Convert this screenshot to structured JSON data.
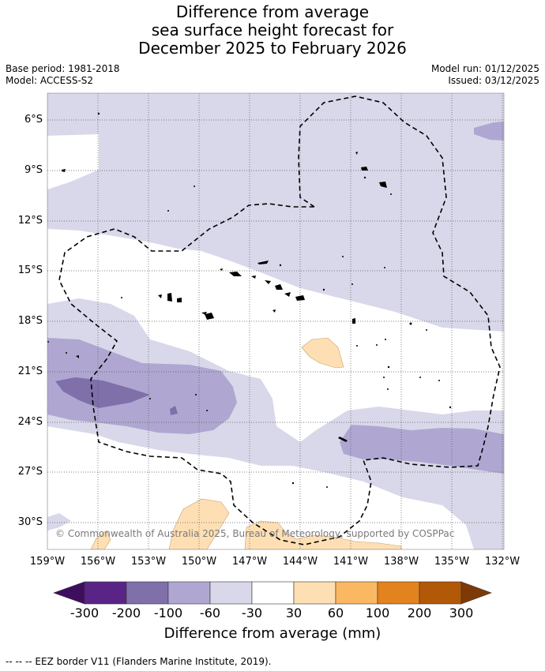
{
  "title": {
    "line1": "Difference from average",
    "line2": "sea surface height forecast for",
    "line3": "December 2025 to February 2026"
  },
  "meta": {
    "base_period": "Base period: 1981-2018",
    "model": "Model: ACCESS-S2",
    "model_run": "Model run: 01/12/2025",
    "issued": "Issued: 03/12/2025"
  },
  "map": {
    "lat_ticks": [
      "6°S",
      "9°S",
      "12°S",
      "15°S",
      "18°S",
      "21°S",
      "24°S",
      "27°S",
      "30°S"
    ],
    "lon_ticks": [
      "159°W",
      "156°W",
      "153°W",
      "150°W",
      "147°W",
      "144°W",
      "141°W",
      "138°W",
      "135°W",
      "132°W"
    ],
    "copyright": "© Commonwealth of Australia 2025, Bureau of Meteorology, supported by COSPPac"
  },
  "colorbar": {
    "labels": [
      "-300",
      "-200",
      "-100",
      "-60",
      "-30",
      "30",
      "60",
      "100",
      "200",
      "300"
    ],
    "colors": [
      "#3f0d5e",
      "#5a2486",
      "#7f70aa",
      "#afa7d1",
      "#d8d8ea",
      "#ffffff",
      "#fedfb4",
      "#fab862",
      "#e2831e",
      "#b25908",
      "#7d3a07"
    ],
    "title": "Difference from average (mm)"
  },
  "legend": {
    "eez": "--  --  -- EEZ border V11 (Flanders Marine Institute, 2019)."
  }
}
